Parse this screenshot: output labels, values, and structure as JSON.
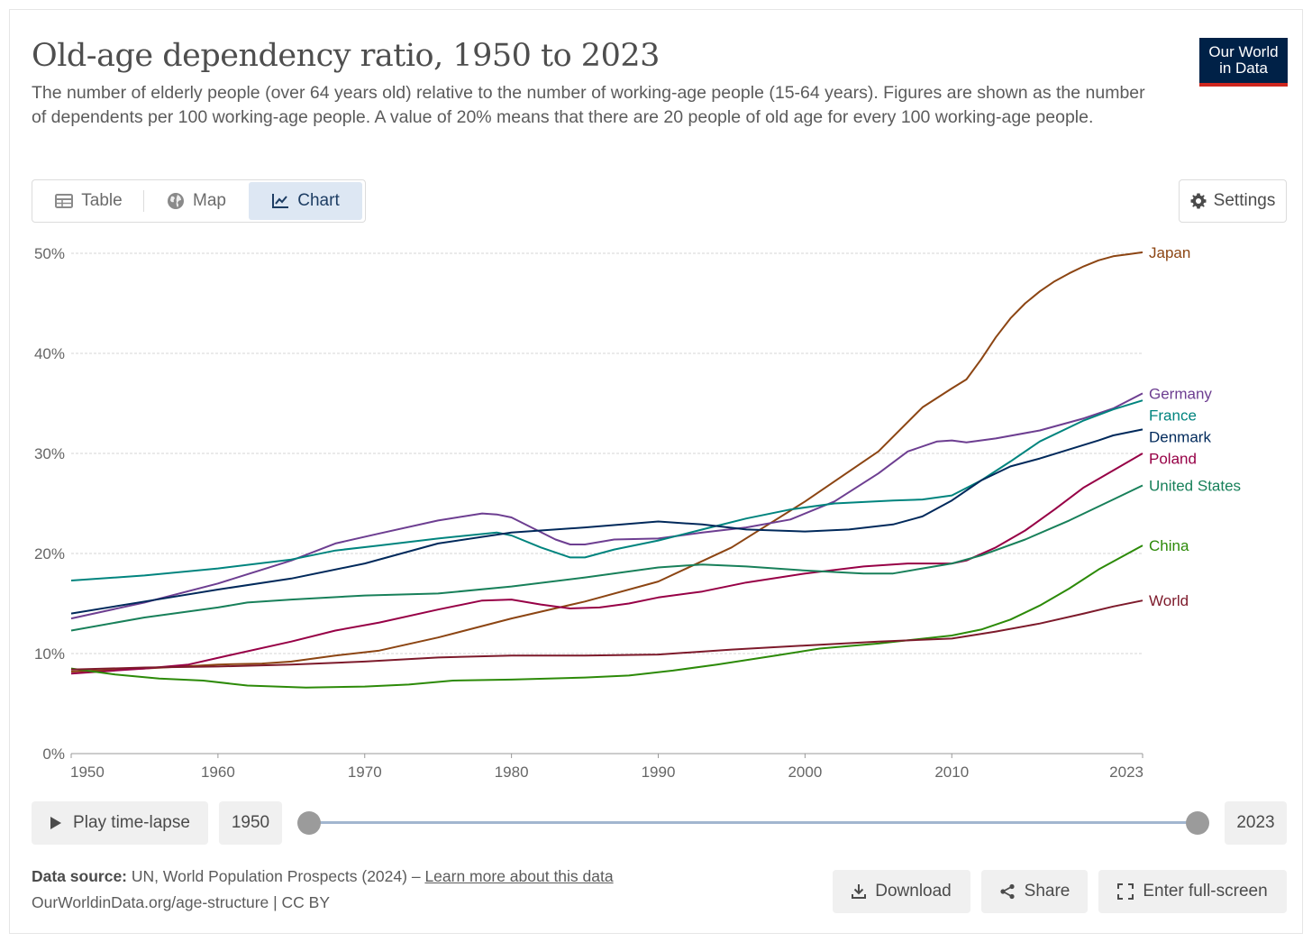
{
  "header": {
    "title": "Old-age dependency ratio, 1950 to 2023",
    "subtitle": "The number of elderly people (over 64 years old) relative to the number of working-age people (15-64 years). Figures are shown as the number of dependents per 100 working-age people. A value of 20% means that there are 20 people of old age for every 100 working-age people.",
    "logo_line1": "Our World",
    "logo_line2": "in Data"
  },
  "tabs": [
    {
      "label": "Table",
      "icon": "table-icon"
    },
    {
      "label": "Map",
      "icon": "globe-icon"
    },
    {
      "label": "Chart",
      "icon": "line-chart-icon",
      "active": true
    }
  ],
  "settings_label": "Settings",
  "timeline": {
    "play_label": "Play time-lapse",
    "start_label": "1950",
    "end_label": "2023"
  },
  "footer": {
    "source_prefix": "Data source:",
    "source_text": "UN, World Population Prospects (2024) –",
    "learn_more": "Learn more about this data",
    "url_line": "OurWorldinData.org/age-structure | CC BY",
    "download_label": "Download",
    "share_label": "Share",
    "fullscreen_label": "Enter full-screen"
  },
  "chart_data": {
    "type": "line",
    "xlim": [
      1950,
      2023
    ],
    "ylim": [
      0,
      50
    ],
    "yticks": [
      0,
      10,
      20,
      30,
      40,
      50
    ],
    "ytick_labels": [
      "0%",
      "10%",
      "20%",
      "30%",
      "40%",
      "50%"
    ],
    "xticks": [
      1950,
      1960,
      1970,
      1980,
      1990,
      2000,
      2010,
      2023
    ],
    "xtick_labels": [
      "1950",
      "1960",
      "1970",
      "1980",
      "1990",
      "2000",
      "2010",
      "2023"
    ],
    "grid": true,
    "series": [
      {
        "name": "Japan",
        "color": "#8c4513",
        "points": [
          [
            1950,
            8.2
          ],
          [
            1955,
            8.5
          ],
          [
            1960,
            8.9
          ],
          [
            1963,
            9.0
          ],
          [
            1965,
            9.2
          ],
          [
            1968,
            9.8
          ],
          [
            1971,
            10.3
          ],
          [
            1975,
            11.6
          ],
          [
            1980,
            13.5
          ],
          [
            1985,
            15.2
          ],
          [
            1990,
            17.2
          ],
          [
            1995,
            20.6
          ],
          [
            2000,
            25.2
          ],
          [
            2005,
            30.2
          ],
          [
            2008,
            34.6
          ],
          [
            2010,
            36.5
          ],
          [
            2011,
            37.4
          ],
          [
            2012,
            39.4
          ],
          [
            2013,
            41.6
          ],
          [
            2014,
            43.5
          ],
          [
            2015,
            45.0
          ],
          [
            2016,
            46.2
          ],
          [
            2017,
            47.2
          ],
          [
            2018,
            48.0
          ],
          [
            2019,
            48.7
          ],
          [
            2020,
            49.3
          ],
          [
            2021,
            49.7
          ],
          [
            2022,
            49.9
          ],
          [
            2023,
            50.1
          ]
        ]
      },
      {
        "name": "Germany",
        "color": "#6d3e91",
        "points": [
          [
            1950,
            13.5
          ],
          [
            1955,
            15.1
          ],
          [
            1960,
            17.0
          ],
          [
            1965,
            19.3
          ],
          [
            1968,
            21.0
          ],
          [
            1971,
            22.0
          ],
          [
            1975,
            23.3
          ],
          [
            1978,
            24.0
          ],
          [
            1979,
            23.9
          ],
          [
            1980,
            23.6
          ],
          [
            1983,
            21.4
          ],
          [
            1984,
            20.9
          ],
          [
            1985,
            20.9
          ],
          [
            1987,
            21.4
          ],
          [
            1990,
            21.5
          ],
          [
            1993,
            22.1
          ],
          [
            1996,
            22.6
          ],
          [
            1999,
            23.4
          ],
          [
            2002,
            25.2
          ],
          [
            2005,
            28.0
          ],
          [
            2007,
            30.2
          ],
          [
            2009,
            31.2
          ],
          [
            2010,
            31.3
          ],
          [
            2011,
            31.1
          ],
          [
            2013,
            31.5
          ],
          [
            2016,
            32.3
          ],
          [
            2019,
            33.5
          ],
          [
            2021,
            34.5
          ],
          [
            2023,
            36.0
          ]
        ]
      },
      {
        "name": "France",
        "color": "#00847e",
        "points": [
          [
            1950,
            17.3
          ],
          [
            1955,
            17.8
          ],
          [
            1960,
            18.5
          ],
          [
            1965,
            19.4
          ],
          [
            1968,
            20.3
          ],
          [
            1971,
            20.8
          ],
          [
            1975,
            21.5
          ],
          [
            1979,
            22.1
          ],
          [
            1980,
            21.8
          ],
          [
            1982,
            20.6
          ],
          [
            1984,
            19.6
          ],
          [
            1985,
            19.6
          ],
          [
            1987,
            20.4
          ],
          [
            1990,
            21.3
          ],
          [
            1993,
            22.4
          ],
          [
            1996,
            23.5
          ],
          [
            1999,
            24.4
          ],
          [
            2002,
            25.0
          ],
          [
            2006,
            25.3
          ],
          [
            2008,
            25.4
          ],
          [
            2010,
            25.8
          ],
          [
            2012,
            27.3
          ],
          [
            2014,
            29.2
          ],
          [
            2016,
            31.2
          ],
          [
            2019,
            33.3
          ],
          [
            2021,
            34.4
          ],
          [
            2023,
            35.3
          ]
        ]
      },
      {
        "name": "Denmark",
        "color": "#00295b",
        "points": [
          [
            1950,
            14.0
          ],
          [
            1955,
            15.2
          ],
          [
            1960,
            16.4
          ],
          [
            1965,
            17.5
          ],
          [
            1970,
            19.0
          ],
          [
            1975,
            21.0
          ],
          [
            1980,
            22.1
          ],
          [
            1985,
            22.6
          ],
          [
            1990,
            23.2
          ],
          [
            1993,
            22.9
          ],
          [
            1996,
            22.4
          ],
          [
            2000,
            22.2
          ],
          [
            2003,
            22.4
          ],
          [
            2006,
            22.9
          ],
          [
            2008,
            23.7
          ],
          [
            2010,
            25.3
          ],
          [
            2012,
            27.3
          ],
          [
            2014,
            28.7
          ],
          [
            2016,
            29.5
          ],
          [
            2018,
            30.4
          ],
          [
            2020,
            31.3
          ],
          [
            2021,
            31.8
          ],
          [
            2023,
            32.4
          ]
        ]
      },
      {
        "name": "Poland",
        "color": "#970046",
        "points": [
          [
            1950,
            8.0
          ],
          [
            1955,
            8.5
          ],
          [
            1958,
            8.9
          ],
          [
            1961,
            9.9
          ],
          [
            1965,
            11.2
          ],
          [
            1968,
            12.3
          ],
          [
            1971,
            13.1
          ],
          [
            1975,
            14.4
          ],
          [
            1978,
            15.3
          ],
          [
            1980,
            15.4
          ],
          [
            1982,
            14.9
          ],
          [
            1984,
            14.5
          ],
          [
            1986,
            14.6
          ],
          [
            1988,
            15.0
          ],
          [
            1990,
            15.6
          ],
          [
            1993,
            16.2
          ],
          [
            1996,
            17.1
          ],
          [
            2000,
            18.0
          ],
          [
            2004,
            18.7
          ],
          [
            2007,
            19.0
          ],
          [
            2010,
            19.0
          ],
          [
            2011,
            19.3
          ],
          [
            2013,
            20.6
          ],
          [
            2015,
            22.3
          ],
          [
            2017,
            24.4
          ],
          [
            2019,
            26.6
          ],
          [
            2021,
            28.3
          ],
          [
            2023,
            30.0
          ]
        ]
      },
      {
        "name": "United States",
        "color": "#18805a",
        "points": [
          [
            1950,
            12.3
          ],
          [
            1955,
            13.6
          ],
          [
            1960,
            14.6
          ],
          [
            1962,
            15.1
          ],
          [
            1965,
            15.4
          ],
          [
            1970,
            15.8
          ],
          [
            1975,
            16.0
          ],
          [
            1980,
            16.7
          ],
          [
            1985,
            17.6
          ],
          [
            1990,
            18.6
          ],
          [
            1993,
            18.9
          ],
          [
            1996,
            18.7
          ],
          [
            2000,
            18.3
          ],
          [
            2004,
            18.0
          ],
          [
            2006,
            18.0
          ],
          [
            2008,
            18.5
          ],
          [
            2010,
            19.0
          ],
          [
            2012,
            19.8
          ],
          [
            2015,
            21.4
          ],
          [
            2018,
            23.3
          ],
          [
            2021,
            25.4
          ],
          [
            2023,
            26.8
          ]
        ]
      },
      {
        "name": "China",
        "color": "#2c8a08",
        "points": [
          [
            1950,
            8.5
          ],
          [
            1953,
            7.9
          ],
          [
            1956,
            7.5
          ],
          [
            1959,
            7.3
          ],
          [
            1962,
            6.8
          ],
          [
            1966,
            6.6
          ],
          [
            1970,
            6.7
          ],
          [
            1973,
            6.9
          ],
          [
            1976,
            7.3
          ],
          [
            1980,
            7.4
          ],
          [
            1985,
            7.6
          ],
          [
            1988,
            7.8
          ],
          [
            1991,
            8.3
          ],
          [
            1994,
            8.9
          ],
          [
            1998,
            9.8
          ],
          [
            2001,
            10.5
          ],
          [
            2005,
            11.0
          ],
          [
            2010,
            11.8
          ],
          [
            2012,
            12.4
          ],
          [
            2014,
            13.4
          ],
          [
            2016,
            14.8
          ],
          [
            2018,
            16.5
          ],
          [
            2020,
            18.4
          ],
          [
            2022,
            20.0
          ],
          [
            2023,
            20.8
          ]
        ]
      },
      {
        "name": "World",
        "color": "#7d1a2b",
        "points": [
          [
            1950,
            8.4
          ],
          [
            1955,
            8.6
          ],
          [
            1960,
            8.7
          ],
          [
            1965,
            8.9
          ],
          [
            1970,
            9.2
          ],
          [
            1975,
            9.6
          ],
          [
            1980,
            9.8
          ],
          [
            1985,
            9.8
          ],
          [
            1990,
            9.9
          ],
          [
            1995,
            10.4
          ],
          [
            2000,
            10.8
          ],
          [
            2005,
            11.2
          ],
          [
            2010,
            11.5
          ],
          [
            2013,
            12.2
          ],
          [
            2016,
            13.0
          ],
          [
            2019,
            14.0
          ],
          [
            2021,
            14.7
          ],
          [
            2023,
            15.3
          ]
        ]
      }
    ]
  }
}
